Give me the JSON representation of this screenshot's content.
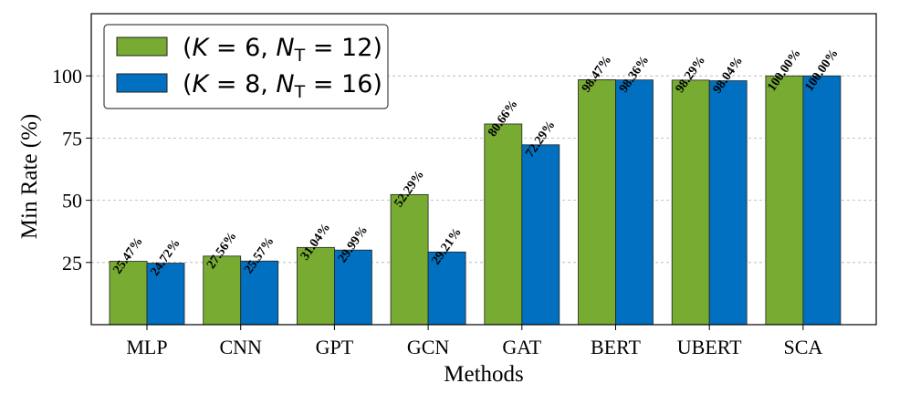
{
  "chart_data": {
    "type": "bar",
    "title": "",
    "xlabel": "Methods",
    "ylabel": "Min Rate (%)",
    "ylim": [
      0,
      125
    ],
    "yticks": [
      25,
      50,
      75,
      100
    ],
    "grid": "horizontal dashed",
    "legend_position": "top-left",
    "categories": [
      "MLP",
      "CNN",
      "GPT",
      "GCN",
      "GAT",
      "BERT",
      "UBERT",
      "SCA"
    ],
    "series": [
      {
        "name": "(K = 6, N_T = 12)",
        "legend_k": "6",
        "legend_n": "12",
        "color": "#77ab31",
        "values": [
          25.47,
          27.56,
          31.04,
          52.29,
          80.66,
          98.47,
          98.29,
          100.0
        ],
        "labels": [
          "25.47%",
          "27.56%",
          "31.04%",
          "52.29%",
          "80.66%",
          "98.47%",
          "98.29%",
          "100.00%"
        ]
      },
      {
        "name": "(K = 8, N_T = 16)",
        "legend_k": "8",
        "legend_n": "16",
        "color": "#0170c0",
        "values": [
          24.72,
          25.57,
          29.99,
          29.21,
          72.29,
          98.36,
          98.04,
          100.0
        ],
        "labels": [
          "24.72%",
          "25.57%",
          "29.99%",
          "29.21%",
          "72.29%",
          "98.36%",
          "98.04%",
          "100.00%"
        ]
      }
    ]
  }
}
